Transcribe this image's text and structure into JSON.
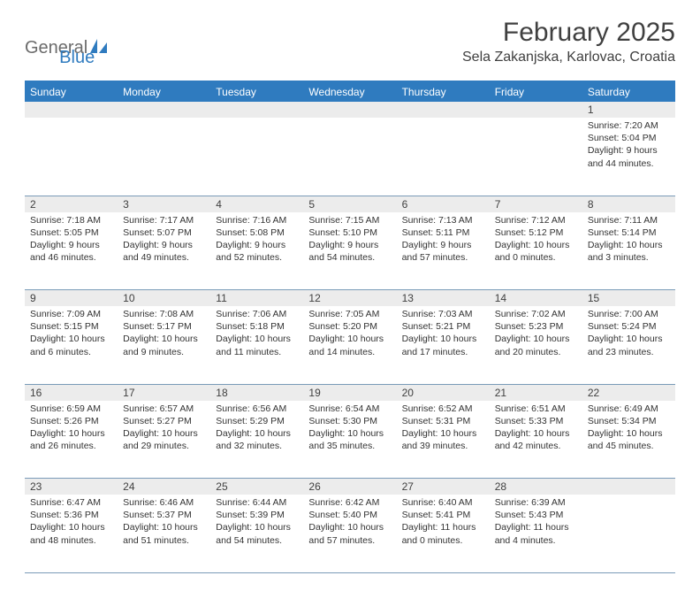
{
  "colors": {
    "header_blue": "#2f7bbf",
    "logo_gray": "#6b6b6b",
    "grid_line": "#7a9bb8",
    "daynum_bg": "#ececec",
    "text": "#333333",
    "title": "#404040",
    "white": "#ffffff"
  },
  "fonts": {
    "family": "Arial",
    "title_size_pt": 30,
    "location_size_pt": 16,
    "header_size_pt": 12,
    "daynum_size_pt": 12,
    "cell_size_pt": 10.5
  },
  "logo": {
    "text1": "General",
    "text2": "Blue"
  },
  "title": "February 2025",
  "location": "Sela Zakanjska, Karlovac, Croatia",
  "weekdays": [
    "Sunday",
    "Monday",
    "Tuesday",
    "Wednesday",
    "Thursday",
    "Friday",
    "Saturday"
  ],
  "calendar": {
    "type": "table",
    "columns": 7,
    "rows": 5,
    "weeks": [
      [
        null,
        null,
        null,
        null,
        null,
        null,
        {
          "n": "1",
          "sunrise": "7:20 AM",
          "sunset": "5:04 PM",
          "daylight": "9 hours and 44 minutes."
        }
      ],
      [
        {
          "n": "2",
          "sunrise": "7:18 AM",
          "sunset": "5:05 PM",
          "daylight": "9 hours and 46 minutes."
        },
        {
          "n": "3",
          "sunrise": "7:17 AM",
          "sunset": "5:07 PM",
          "daylight": "9 hours and 49 minutes."
        },
        {
          "n": "4",
          "sunrise": "7:16 AM",
          "sunset": "5:08 PM",
          "daylight": "9 hours and 52 minutes."
        },
        {
          "n": "5",
          "sunrise": "7:15 AM",
          "sunset": "5:10 PM",
          "daylight": "9 hours and 54 minutes."
        },
        {
          "n": "6",
          "sunrise": "7:13 AM",
          "sunset": "5:11 PM",
          "daylight": "9 hours and 57 minutes."
        },
        {
          "n": "7",
          "sunrise": "7:12 AM",
          "sunset": "5:12 PM",
          "daylight": "10 hours and 0 minutes."
        },
        {
          "n": "8",
          "sunrise": "7:11 AM",
          "sunset": "5:14 PM",
          "daylight": "10 hours and 3 minutes."
        }
      ],
      [
        {
          "n": "9",
          "sunrise": "7:09 AM",
          "sunset": "5:15 PM",
          "daylight": "10 hours and 6 minutes."
        },
        {
          "n": "10",
          "sunrise": "7:08 AM",
          "sunset": "5:17 PM",
          "daylight": "10 hours and 9 minutes."
        },
        {
          "n": "11",
          "sunrise": "7:06 AM",
          "sunset": "5:18 PM",
          "daylight": "10 hours and 11 minutes."
        },
        {
          "n": "12",
          "sunrise": "7:05 AM",
          "sunset": "5:20 PM",
          "daylight": "10 hours and 14 minutes."
        },
        {
          "n": "13",
          "sunrise": "7:03 AM",
          "sunset": "5:21 PM",
          "daylight": "10 hours and 17 minutes."
        },
        {
          "n": "14",
          "sunrise": "7:02 AM",
          "sunset": "5:23 PM",
          "daylight": "10 hours and 20 minutes."
        },
        {
          "n": "15",
          "sunrise": "7:00 AM",
          "sunset": "5:24 PM",
          "daylight": "10 hours and 23 minutes."
        }
      ],
      [
        {
          "n": "16",
          "sunrise": "6:59 AM",
          "sunset": "5:26 PM",
          "daylight": "10 hours and 26 minutes."
        },
        {
          "n": "17",
          "sunrise": "6:57 AM",
          "sunset": "5:27 PM",
          "daylight": "10 hours and 29 minutes."
        },
        {
          "n": "18",
          "sunrise": "6:56 AM",
          "sunset": "5:29 PM",
          "daylight": "10 hours and 32 minutes."
        },
        {
          "n": "19",
          "sunrise": "6:54 AM",
          "sunset": "5:30 PM",
          "daylight": "10 hours and 35 minutes."
        },
        {
          "n": "20",
          "sunrise": "6:52 AM",
          "sunset": "5:31 PM",
          "daylight": "10 hours and 39 minutes."
        },
        {
          "n": "21",
          "sunrise": "6:51 AM",
          "sunset": "5:33 PM",
          "daylight": "10 hours and 42 minutes."
        },
        {
          "n": "22",
          "sunrise": "6:49 AM",
          "sunset": "5:34 PM",
          "daylight": "10 hours and 45 minutes."
        }
      ],
      [
        {
          "n": "23",
          "sunrise": "6:47 AM",
          "sunset": "5:36 PM",
          "daylight": "10 hours and 48 minutes."
        },
        {
          "n": "24",
          "sunrise": "6:46 AM",
          "sunset": "5:37 PM",
          "daylight": "10 hours and 51 minutes."
        },
        {
          "n": "25",
          "sunrise": "6:44 AM",
          "sunset": "5:39 PM",
          "daylight": "10 hours and 54 minutes."
        },
        {
          "n": "26",
          "sunrise": "6:42 AM",
          "sunset": "5:40 PM",
          "daylight": "10 hours and 57 minutes."
        },
        {
          "n": "27",
          "sunrise": "6:40 AM",
          "sunset": "5:41 PM",
          "daylight": "11 hours and 0 minutes."
        },
        {
          "n": "28",
          "sunrise": "6:39 AM",
          "sunset": "5:43 PM",
          "daylight": "11 hours and 4 minutes."
        },
        null
      ]
    ]
  },
  "labels": {
    "sunrise": "Sunrise: ",
    "sunset": "Sunset: ",
    "daylight": "Daylight: "
  }
}
